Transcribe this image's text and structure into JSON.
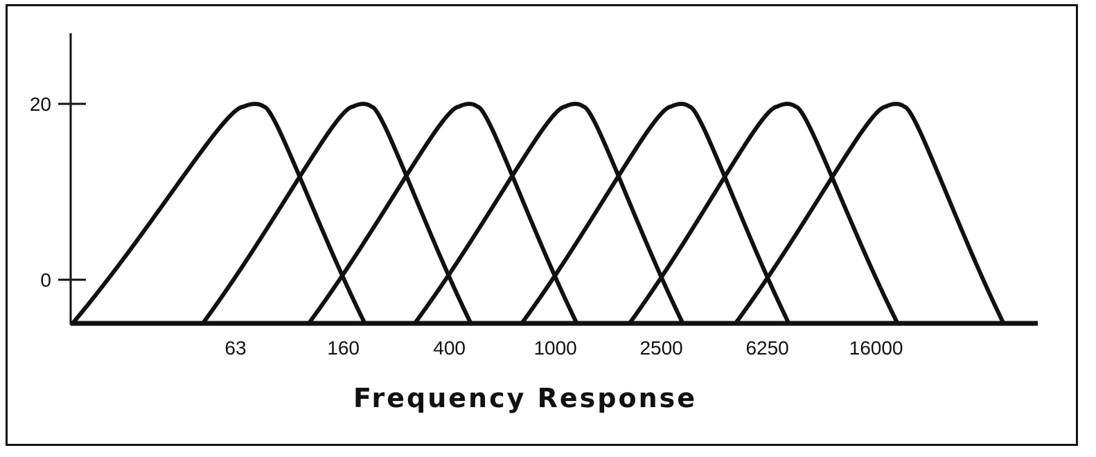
{
  "chart_data": {
    "type": "line",
    "title": "",
    "xlabel": "Frequency Response",
    "ylabel": "",
    "x_scale": "log",
    "x_ticks": [
      "63",
      "160",
      "400",
      "1000",
      "2500",
      "6250",
      "16000"
    ],
    "y_ticks": [
      "20",
      "0"
    ],
    "ylim": [
      -5,
      28
    ],
    "grid": false,
    "legend": "none",
    "series": [
      {
        "center": 63,
        "peak": 20,
        "values": [
          [
            13,
            -5
          ],
          [
            63,
            20
          ],
          [
            160,
            -5
          ]
        ]
      },
      {
        "center": 160,
        "peak": 20,
        "values": [
          [
            40,
            -5
          ],
          [
            160,
            20
          ],
          [
            400,
            -5
          ]
        ]
      },
      {
        "center": 400,
        "peak": 20,
        "values": [
          [
            100,
            -5
          ],
          [
            400,
            20
          ],
          [
            1000,
            -5
          ]
        ]
      },
      {
        "center": 1000,
        "peak": 20,
        "values": [
          [
            250,
            -5
          ],
          [
            1000,
            20
          ],
          [
            2500,
            -5
          ]
        ]
      },
      {
        "center": 2500,
        "peak": 20,
        "values": [
          [
            630,
            -5
          ],
          [
            2500,
            20
          ],
          [
            6250,
            -5
          ]
        ]
      },
      {
        "center": 6250,
        "peak": 20,
        "values": [
          [
            1600,
            -5
          ],
          [
            6250,
            20
          ],
          [
            16000,
            -5
          ]
        ]
      },
      {
        "center": 16000,
        "peak": 20,
        "values": [
          [
            4000,
            -5
          ],
          [
            16000,
            20
          ],
          [
            40000,
            -5
          ]
        ]
      }
    ],
    "colors": {
      "ink": "#111111",
      "background": "#ffffff"
    }
  }
}
